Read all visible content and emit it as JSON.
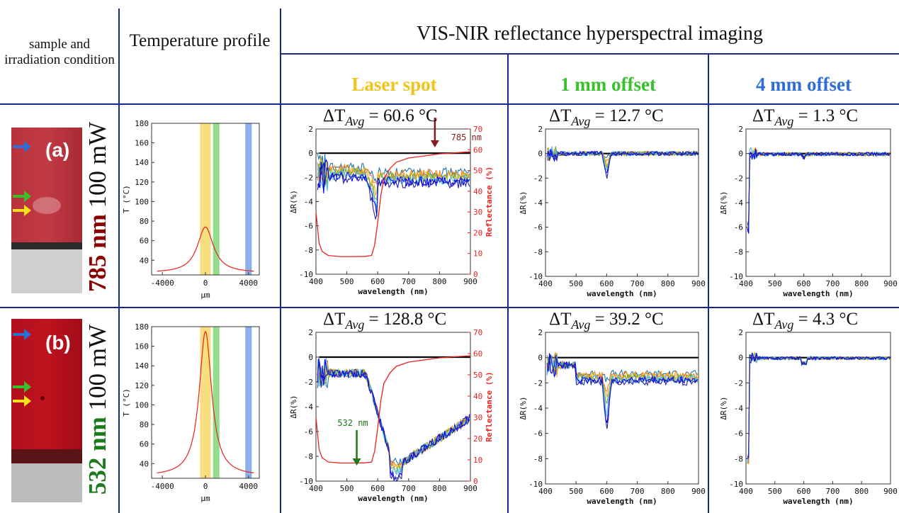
{
  "header": {
    "sample_label": "sample and irradiation condition",
    "temp_label": "Temperature profile",
    "vis_label": "VIS-NIR reflectance hyperspectral imaging",
    "col_laser": "Laser spot",
    "col_1mm": "1 mm offset",
    "col_4mm": "4 mm offset"
  },
  "colors": {
    "divider": "#1a2a8a",
    "laser": "#f0c419",
    "offset1": "#38c22a",
    "offset4": "#2d6fd6",
    "red_curve": "#e8241c",
    "label_785": "#8b0000",
    "label_532": "#1b7a1b"
  },
  "rows": [
    {
      "letter": "(a)",
      "wavelength": "785 nm",
      "power": "100 mW",
      "dt_laser": "60.6 °C",
      "dt_1mm": "12.7 °C",
      "dt_4mm": "1.3 °C",
      "marker_label": "785 nm",
      "marker_color": "#8b1a1a"
    },
    {
      "letter": "(b)",
      "wavelength": "532 nm",
      "power": "100 mW",
      "dt_laser": "128.8 °C",
      "dt_1mm": "39.2 °C",
      "dt_4mm": "4.3 °C",
      "marker_label": "532 nm",
      "marker_color": "#1b7a1b"
    }
  ],
  "dt_prefix": "ΔT",
  "dt_sub": "Avg",
  "chart_data": [
    {
      "type": "line",
      "panel": "temperature-a",
      "xlabel": "μm",
      "ylabel": "T (°C)",
      "xlim": [
        -5000,
        5000
      ],
      "ylim": [
        25,
        180
      ],
      "xticks": [
        "-4000",
        "0",
        "4000"
      ],
      "yticks": [
        "40",
        "60",
        "80",
        "100",
        "120",
        "140",
        "160",
        "180"
      ],
      "bands": [
        {
          "name": "laser",
          "x": [
            -500,
            500
          ],
          "color": "#f0c419"
        },
        {
          "name": "1mm",
          "x": [
            700,
            1300
          ],
          "color": "#38c22a"
        },
        {
          "name": "4mm",
          "x": [
            3700,
            4300
          ],
          "color": "#2d6fd6"
        }
      ],
      "peak": 74,
      "baseline": 27,
      "width": 900
    },
    {
      "type": "line",
      "panel": "temperature-b",
      "xlabel": "μm",
      "ylabel": "T (°C)",
      "xlim": [
        -5000,
        5000
      ],
      "ylim": [
        25,
        180
      ],
      "xticks": [
        "-4000",
        "0",
        "4000"
      ],
      "yticks": [
        "40",
        "60",
        "80",
        "100",
        "120",
        "140",
        "160",
        "180"
      ],
      "bands": [
        {
          "name": "laser",
          "x": [
            -500,
            500
          ],
          "color": "#f0c419"
        },
        {
          "name": "1mm",
          "x": [
            700,
            1300
          ],
          "color": "#38c22a"
        },
        {
          "name": "4mm",
          "x": [
            3700,
            4300
          ],
          "color": "#2d6fd6"
        }
      ],
      "peak": 175,
      "baseline": 27,
      "width": 700
    },
    {
      "type": "line",
      "panel": "spectra",
      "xlabel": "wavelength (nm)",
      "ylabel": "ΔR(%)",
      "y2label": "Reflectance (%)",
      "xlim": [
        400,
        900
      ],
      "ylim": [
        -10,
        2
      ],
      "y2lim": [
        0,
        70
      ],
      "xticks": [
        "400",
        "500",
        "600",
        "700",
        "800",
        "900"
      ],
      "yticks": [
        "-10",
        "-8",
        "-6",
        "-4",
        "-2",
        "0",
        "2"
      ],
      "y2ticks": [
        "0",
        "10",
        "20",
        "30",
        "40",
        "50",
        "60",
        "70"
      ],
      "series_colors": [
        "#1f77b4",
        "#ff7f0e",
        "#edb120",
        "#77ac30",
        "#4dbeee",
        "#0000ff",
        "#2222aa"
      ],
      "reflectance": {
        "x": [
          400,
          410,
          420,
          440,
          480,
          520,
          560,
          580,
          590,
          600,
          610,
          620,
          640,
          660,
          700,
          750,
          800,
          850,
          900
        ],
        "y": [
          30,
          15,
          11,
          9,
          8.5,
          8.5,
          8.6,
          9,
          14,
          25,
          38,
          46,
          51,
          54,
          56,
          57,
          58,
          58.5,
          59
        ]
      }
    }
  ]
}
